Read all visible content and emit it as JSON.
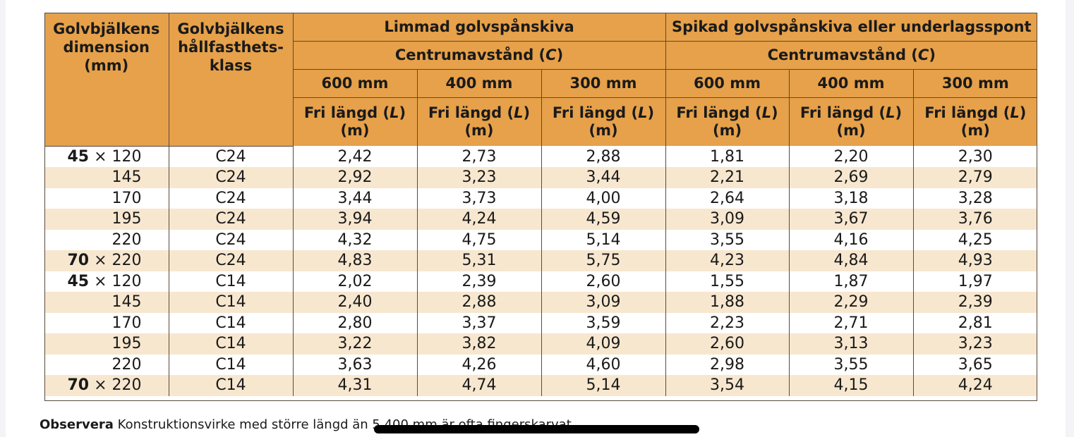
{
  "table": {
    "header": {
      "dimension": [
        "Golvbjälkens",
        "dimension",
        "(mm)"
      ],
      "strength_class": [
        "Golvbjälkens",
        "hållfasthets-",
        "klass"
      ],
      "group_glued": "Limmad golvspånskiva",
      "group_nailed": "Spikad golvspånskiva eller underlagsspont",
      "spacing_label": "Centrumavstånd (",
      "spacing_symbol": "C",
      "spacing_close": ")",
      "spacings": [
        "600 mm",
        "400 mm",
        "300 mm"
      ],
      "free_length_label": "Fri längd (",
      "free_length_symbol": "L",
      "free_length_close": ")",
      "free_length_unit": "(m)"
    },
    "rows": [
      {
        "dim_bold": "45",
        "dim_rest": " × 120",
        "cls": "C24",
        "v": [
          "2,42",
          "2,73",
          "2,88",
          "1,81",
          "2,20",
          "2,30"
        ]
      },
      {
        "dim_bold": "",
        "dim_rest": "145",
        "cls": "C24",
        "v": [
          "2,92",
          "3,23",
          "3,44",
          "2,21",
          "2,69",
          "2,79"
        ]
      },
      {
        "dim_bold": "",
        "dim_rest": "170",
        "cls": "C24",
        "v": [
          "3,44",
          "3,73",
          "4,00",
          "2,64",
          "3,18",
          "3,28"
        ]
      },
      {
        "dim_bold": "",
        "dim_rest": "195",
        "cls": "C24",
        "v": [
          "3,94",
          "4,24",
          "4,59",
          "3,09",
          "3,67",
          "3,76"
        ]
      },
      {
        "dim_bold": "",
        "dim_rest": "220",
        "cls": "C24",
        "v": [
          "4,32",
          "4,75",
          "5,14",
          "3,55",
          "4,16",
          "4,25"
        ]
      },
      {
        "dim_bold": "70",
        "dim_rest": " × 220",
        "cls": "C24",
        "v": [
          "4,83",
          "5,31",
          "5,75",
          "4,23",
          "4,84",
          "4,93"
        ]
      },
      {
        "dim_bold": "45",
        "dim_rest": " × 120",
        "cls": "C14",
        "v": [
          "2,02",
          "2,39",
          "2,60",
          "1,55",
          "1,87",
          "1,97"
        ]
      },
      {
        "dim_bold": "",
        "dim_rest": "145",
        "cls": "C14",
        "v": [
          "2,40",
          "2,88",
          "3,09",
          "1,88",
          "2,29",
          "2,39"
        ]
      },
      {
        "dim_bold": "",
        "dim_rest": "170",
        "cls": "C14",
        "v": [
          "2,80",
          "3,37",
          "3,59",
          "2,23",
          "2,71",
          "2,81"
        ]
      },
      {
        "dim_bold": "",
        "dim_rest": "195",
        "cls": "C14",
        "v": [
          "3,22",
          "3,82",
          "4,09",
          "2,60",
          "3,13",
          "3,23"
        ]
      },
      {
        "dim_bold": "",
        "dim_rest": "220",
        "cls": "C14",
        "v": [
          "3,63",
          "4,26",
          "4,60",
          "2,98",
          "3,55",
          "3,65"
        ]
      },
      {
        "dim_bold": "70",
        "dim_rest": " × 220",
        "cls": "C14",
        "v": [
          "4,31",
          "4,74",
          "5,14",
          "3,54",
          "4,15",
          "4,24"
        ]
      }
    ]
  },
  "note": {
    "label": "Observera",
    "text": " Konstruktionsvirke med större längd än 5 400 mm är ofta fingerskarvat."
  },
  "colors": {
    "header_bg": "#e6a14a",
    "band_bg": "#f7e7cf",
    "rule": "#5a4a3a"
  }
}
